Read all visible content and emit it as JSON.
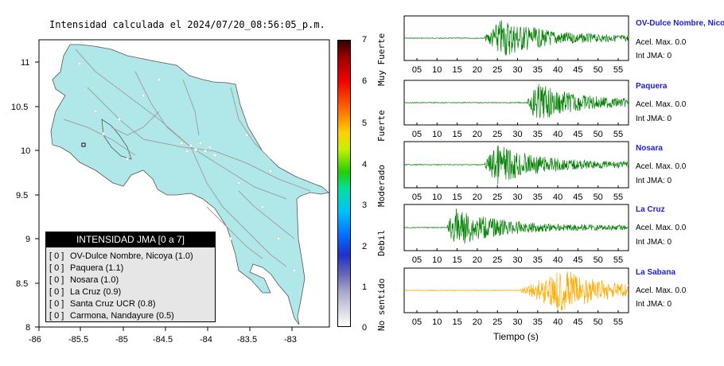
{
  "map": {
    "title": "Intensidad calculada el 2024/07/20_08:56:05_p.m.",
    "x_ticks": [
      "-86",
      "-85.5",
      "-85",
      "-84.5",
      "-84",
      "-83.5",
      "-83"
    ],
    "y_ticks": [
      "11",
      "10.5",
      "10",
      "9.5",
      "9",
      "8.5",
      "8"
    ],
    "land_color": "#b0e8ea",
    "road_color": "#a0a0a0",
    "station_color": "#ffffff"
  },
  "legend": {
    "title": "INTENSIDAD JMA [0 a 7]",
    "items": [
      {
        "count": "[ 0 ]",
        "label": "OV-Dulce Nombre, Nicoya (1.0)"
      },
      {
        "count": "[ 0 ]",
        "label": "Paquera (1.1)"
      },
      {
        "count": "[ 0 ]",
        "label": "Nosara (1.0)"
      },
      {
        "count": "[ 0 ]",
        "label": "La Cruz (0.9)"
      },
      {
        "count": "[ 0 ]",
        "label": "Santa Cruz UCR (0.8)"
      },
      {
        "count": "[ 0 ]",
        "label": "Carmona, Nandayure (0.5)"
      }
    ]
  },
  "colorbar": {
    "ticks": [
      "7",
      "6",
      "5",
      "4",
      "3",
      "2",
      "1",
      "0"
    ],
    "labels": [
      "Muy Fuerte",
      "Fuerte",
      "Moderado",
      "Debil",
      "No sentido"
    ]
  },
  "waveforms": {
    "xlabel": "Tiempo (s)",
    "ticks_a": [
      "05",
      "10",
      "15",
      "20",
      "25",
      "30",
      "35",
      "40",
      "45",
      "50",
      "55"
    ],
    "ticks_b": [
      "05",
      "10",
      "15",
      "20",
      "25",
      "30",
      "35",
      "40",
      "45",
      "50",
      "55"
    ],
    "green": "#008000",
    "orange": "#ffaa00",
    "stations": [
      {
        "name": "OV-Dulce Nombre, Nicoya",
        "acel": "Acel. Max. 0.0",
        "int": "Int JMA: 0"
      },
      {
        "name": "Paquera",
        "acel": "Acel. Max. 0.0",
        "int": "Int JMA: 0"
      },
      {
        "name": "Nosara",
        "acel": "Acel. Max. 0.0",
        "int": "Int JMA: 0"
      },
      {
        "name": "La Cruz",
        "acel": "Acel. Max. 0.0",
        "int": "Int JMA: 0"
      },
      {
        "name": "La Sabana",
        "acel": "Acel. Max. 0.0",
        "int": "Int JMA: 0"
      }
    ]
  }
}
